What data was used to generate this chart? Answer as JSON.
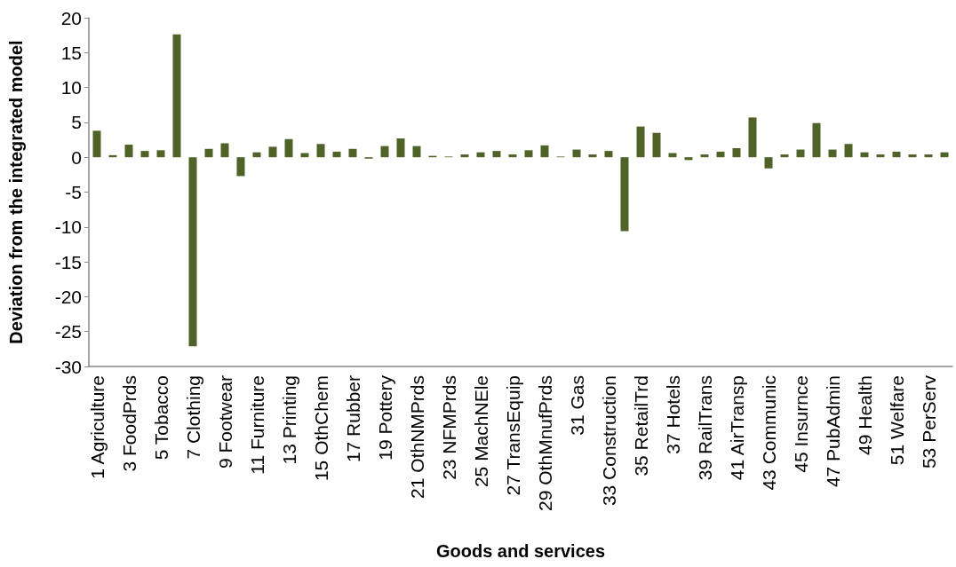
{
  "chart_data": {
    "type": "bar",
    "xlabel": "Goods and services",
    "ylabel": "Deviation from the integrated model",
    "categories": [
      "1 Agriculture",
      null,
      "3 FoodPrds",
      null,
      "5 Tobacco",
      null,
      "7 Clothing",
      null,
      "9 Footwear",
      null,
      "11 Furniture",
      null,
      "13 Printing",
      null,
      "15 OthChem",
      null,
      "17 Rubber",
      null,
      "19 Pottery",
      null,
      "21 OthNMPrds",
      null,
      "23 NFMPrds",
      null,
      "25 MachNEle",
      null,
      "27 TransEquip",
      null,
      "29 OthMnufPrds",
      null,
      "31 Gas",
      null,
      "33 Construction",
      null,
      "35 RetailTrd",
      null,
      "37 Hotels",
      null,
      "39 RailTrans",
      null,
      "41 AirTransp",
      null,
      "43 Communic",
      null,
      "45 Insurnce",
      null,
      "47 PubAdmin",
      null,
      "49 Health",
      null,
      "51 Welfare",
      null,
      "53 PerServ",
      null
    ],
    "values": [
      3.8,
      0.3,
      1.8,
      0.9,
      1.0,
      17.6,
      -27.1,
      1.2,
      2.0,
      -2.7,
      0.7,
      1.5,
      2.6,
      0.6,
      1.9,
      0.8,
      1.2,
      -0.2,
      1.6,
      2.7,
      1.6,
      0.2,
      0.1,
      0.4,
      0.7,
      0.9,
      0.4,
      1.0,
      1.7,
      0.1,
      1.1,
      0.4,
      0.9,
      -10.6,
      4.4,
      3.5,
      0.6,
      -0.4,
      0.4,
      0.8,
      1.3,
      5.7,
      -1.6,
      0.4,
      1.1,
      4.9,
      1.1,
      1.9,
      0.7,
      0.4,
      0.8,
      0.4,
      0.4,
      0.7
    ],
    "color": "#4f6228",
    "ylim": [
      -30,
      20
    ],
    "yticks": [
      -30,
      -25,
      -20,
      -15,
      -10,
      -5,
      0,
      5,
      10,
      15,
      20
    ],
    "grid": false
  }
}
